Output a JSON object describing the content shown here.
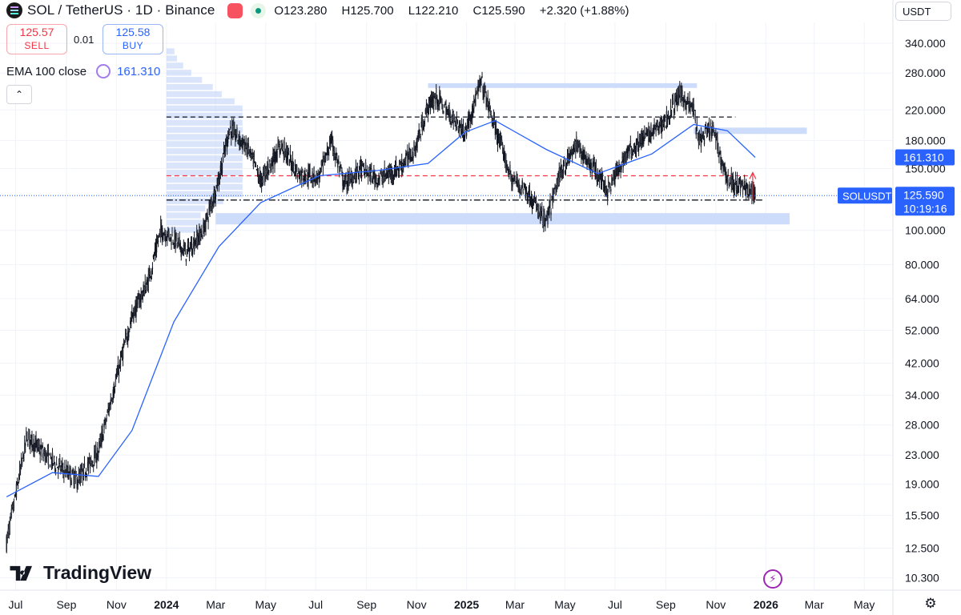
{
  "header": {
    "title": "SOL / TetherUS · 1D · Binance",
    "ohlc": {
      "open_label": "O",
      "open": "123.280",
      "high_label": "H",
      "high": "125.700",
      "low_label": "L",
      "low": "122.210",
      "close_label": "C",
      "close": "125.590",
      "change": "+2.320 (+1.88%)"
    },
    "sell_price": "125.57",
    "sell_label": "SELL",
    "spread": "0.01",
    "buy_price": "125.58",
    "buy_label": "BUY",
    "currency": "USDT"
  },
  "indicator": {
    "label": "EMA 100 close",
    "value": "161.310",
    "color": "#2962ff"
  },
  "watermark": "TradingView",
  "colors": {
    "up": "#131722",
    "price_line": "#2962ff",
    "zone": "#c9d8fb",
    "resistance": "#f23645",
    "ema": "#2962ff"
  },
  "chart_data": {
    "type": "line",
    "series": [
      {
        "name": "SOL / TetherUS",
        "kind": "daily candlestick close",
        "x": [
          "2023-06-20",
          "2023-07-15",
          "2023-08-15",
          "2023-09-15",
          "2023-10-10",
          "2023-11-01",
          "2023-11-20",
          "2023-12-10",
          "2023-12-25",
          "2024-01-10",
          "2024-01-25",
          "2024-02-15",
          "2024-03-05",
          "2024-03-18",
          "2024-04-10",
          "2024-04-25",
          "2024-05-20",
          "2024-06-10",
          "2024-07-05",
          "2024-07-20",
          "2024-08-05",
          "2024-08-25",
          "2024-09-15",
          "2024-10-10",
          "2024-10-30",
          "2024-11-15",
          "2024-11-25",
          "2024-12-10",
          "2024-12-30",
          "2025-01-19",
          "2025-02-05",
          "2025-02-25",
          "2025-03-15",
          "2025-04-08",
          "2025-04-25",
          "2025-05-15",
          "2025-06-10",
          "2025-06-22",
          "2025-07-15",
          "2025-08-01",
          "2025-08-15",
          "2025-09-01",
          "2025-09-18",
          "2025-10-05",
          "2025-10-11",
          "2025-10-28",
          "2025-11-15",
          "2025-11-26",
          "2025-12-08",
          "2025-12-19"
        ],
        "y": [
          13.0,
          26.0,
          22.0,
          19.5,
          23.5,
          38.0,
          57.0,
          72.0,
          100.0,
          95.0,
          86.0,
          100.0,
          140.0,
          195.0,
          170.0,
          138.0,
          175.0,
          145.0,
          142.0,
          180.0,
          135.0,
          150.0,
          140.0,
          150.0,
          170.0,
          225.0,
          240.0,
          215.0,
          190.0,
          265.0,
          195.0,
          140.0,
          130.0,
          105.0,
          145.0,
          175.0,
          145.0,
          130.0,
          165.0,
          180.0,
          190.0,
          205.0,
          245.0,
          220.0,
          180.0,
          195.0,
          140.0,
          135.0,
          132.0,
          125.59
        ]
      },
      {
        "name": "EMA 100 close",
        "x": [
          "2023-06-20",
          "2023-08-15",
          "2023-10-10",
          "2023-11-20",
          "2024-01-10",
          "2024-03-05",
          "2024-04-25",
          "2024-07-05",
          "2024-09-15",
          "2024-11-15",
          "2024-12-30",
          "2025-02-05",
          "2025-04-08",
          "2025-06-10",
          "2025-08-15",
          "2025-10-05",
          "2025-11-15",
          "2025-12-19"
        ],
        "y": [
          17.5,
          20.5,
          20.0,
          27.0,
          55.0,
          90.0,
          120.0,
          143.0,
          148.0,
          155.0,
          190.0,
          205.0,
          170.0,
          145.0,
          165.0,
          200.0,
          192.0,
          161.31
        ]
      }
    ],
    "y_scale": "log",
    "ylim": [
      9.5,
      390
    ],
    "y_ticks": [
      "340.000",
      "280.000",
      "220.000",
      "180.000",
      "150.000",
      "100.000",
      "80.000",
      "64.000",
      "52.000",
      "42.000",
      "34.000",
      "28.000",
      "23.000",
      "19.000",
      "15.500",
      "12.500",
      "10.300"
    ],
    "y_tick_values": [
      340,
      280,
      220,
      180,
      150,
      100,
      80,
      64,
      52,
      42,
      34,
      28,
      23,
      19,
      15.5,
      12.5,
      10.3
    ],
    "x_ticks": [
      {
        "label": "Jul",
        "date": "2023-07-01",
        "bold": false
      },
      {
        "label": "Sep",
        "date": "2023-09-01",
        "bold": false
      },
      {
        "label": "Nov",
        "date": "2023-11-01",
        "bold": false
      },
      {
        "label": "2024",
        "date": "2024-01-01",
        "bold": true
      },
      {
        "label": "Mar",
        "date": "2024-03-01",
        "bold": false
      },
      {
        "label": "May",
        "date": "2024-05-01",
        "bold": false
      },
      {
        "label": "Jul",
        "date": "2024-07-01",
        "bold": false
      },
      {
        "label": "Sep",
        "date": "2024-09-01",
        "bold": false
      },
      {
        "label": "Nov",
        "date": "2024-11-01",
        "bold": false
      },
      {
        "label": "2025",
        "date": "2025-01-01",
        "bold": true
      },
      {
        "label": "Mar",
        "date": "2025-03-01",
        "bold": false
      },
      {
        "label": "May",
        "date": "2025-05-01",
        "bold": false
      },
      {
        "label": "Jul",
        "date": "2025-07-01",
        "bold": false
      },
      {
        "label": "Sep",
        "date": "2025-09-01",
        "bold": false
      },
      {
        "label": "Nov",
        "date": "2025-11-01",
        "bold": false
      },
      {
        "label": "2026",
        "date": "2026-01-01",
        "bold": true
      },
      {
        "label": "Mar",
        "date": "2026-03-01",
        "bold": false
      },
      {
        "label": "May",
        "date": "2026-05-01",
        "bold": false
      }
    ],
    "x_range": [
      "2023-06-12",
      "2026-06-05"
    ],
    "zones": [
      {
        "from": "2024-11-15",
        "to": "2025-10-09",
        "low": 254,
        "high": 262
      },
      {
        "from": "2025-10-05",
        "to": "2026-02-20",
        "low": 188,
        "high": 196
      },
      {
        "from": "2024-03-01",
        "to": "2026-01-30",
        "low": 104,
        "high": 112
      }
    ],
    "levels": [
      {
        "value": 210,
        "from": "2024-01-01",
        "to": "2025-11-25",
        "style": "dashed",
        "color": "#131722"
      },
      {
        "value": 143,
        "from": "2024-01-01",
        "to": "2025-12-15",
        "style": "dashed",
        "color": "#f23645"
      },
      {
        "value": 122,
        "from": "2024-01-01",
        "to": "2025-12-28",
        "style": "dashdot",
        "color": "#131722"
      }
    ],
    "last_price": {
      "value": 125.59,
      "symbol": "SOLUSDT",
      "price_label": "125.590",
      "countdown": "10:19:16"
    },
    "ema_last_label": "161.310",
    "grid": true
  }
}
